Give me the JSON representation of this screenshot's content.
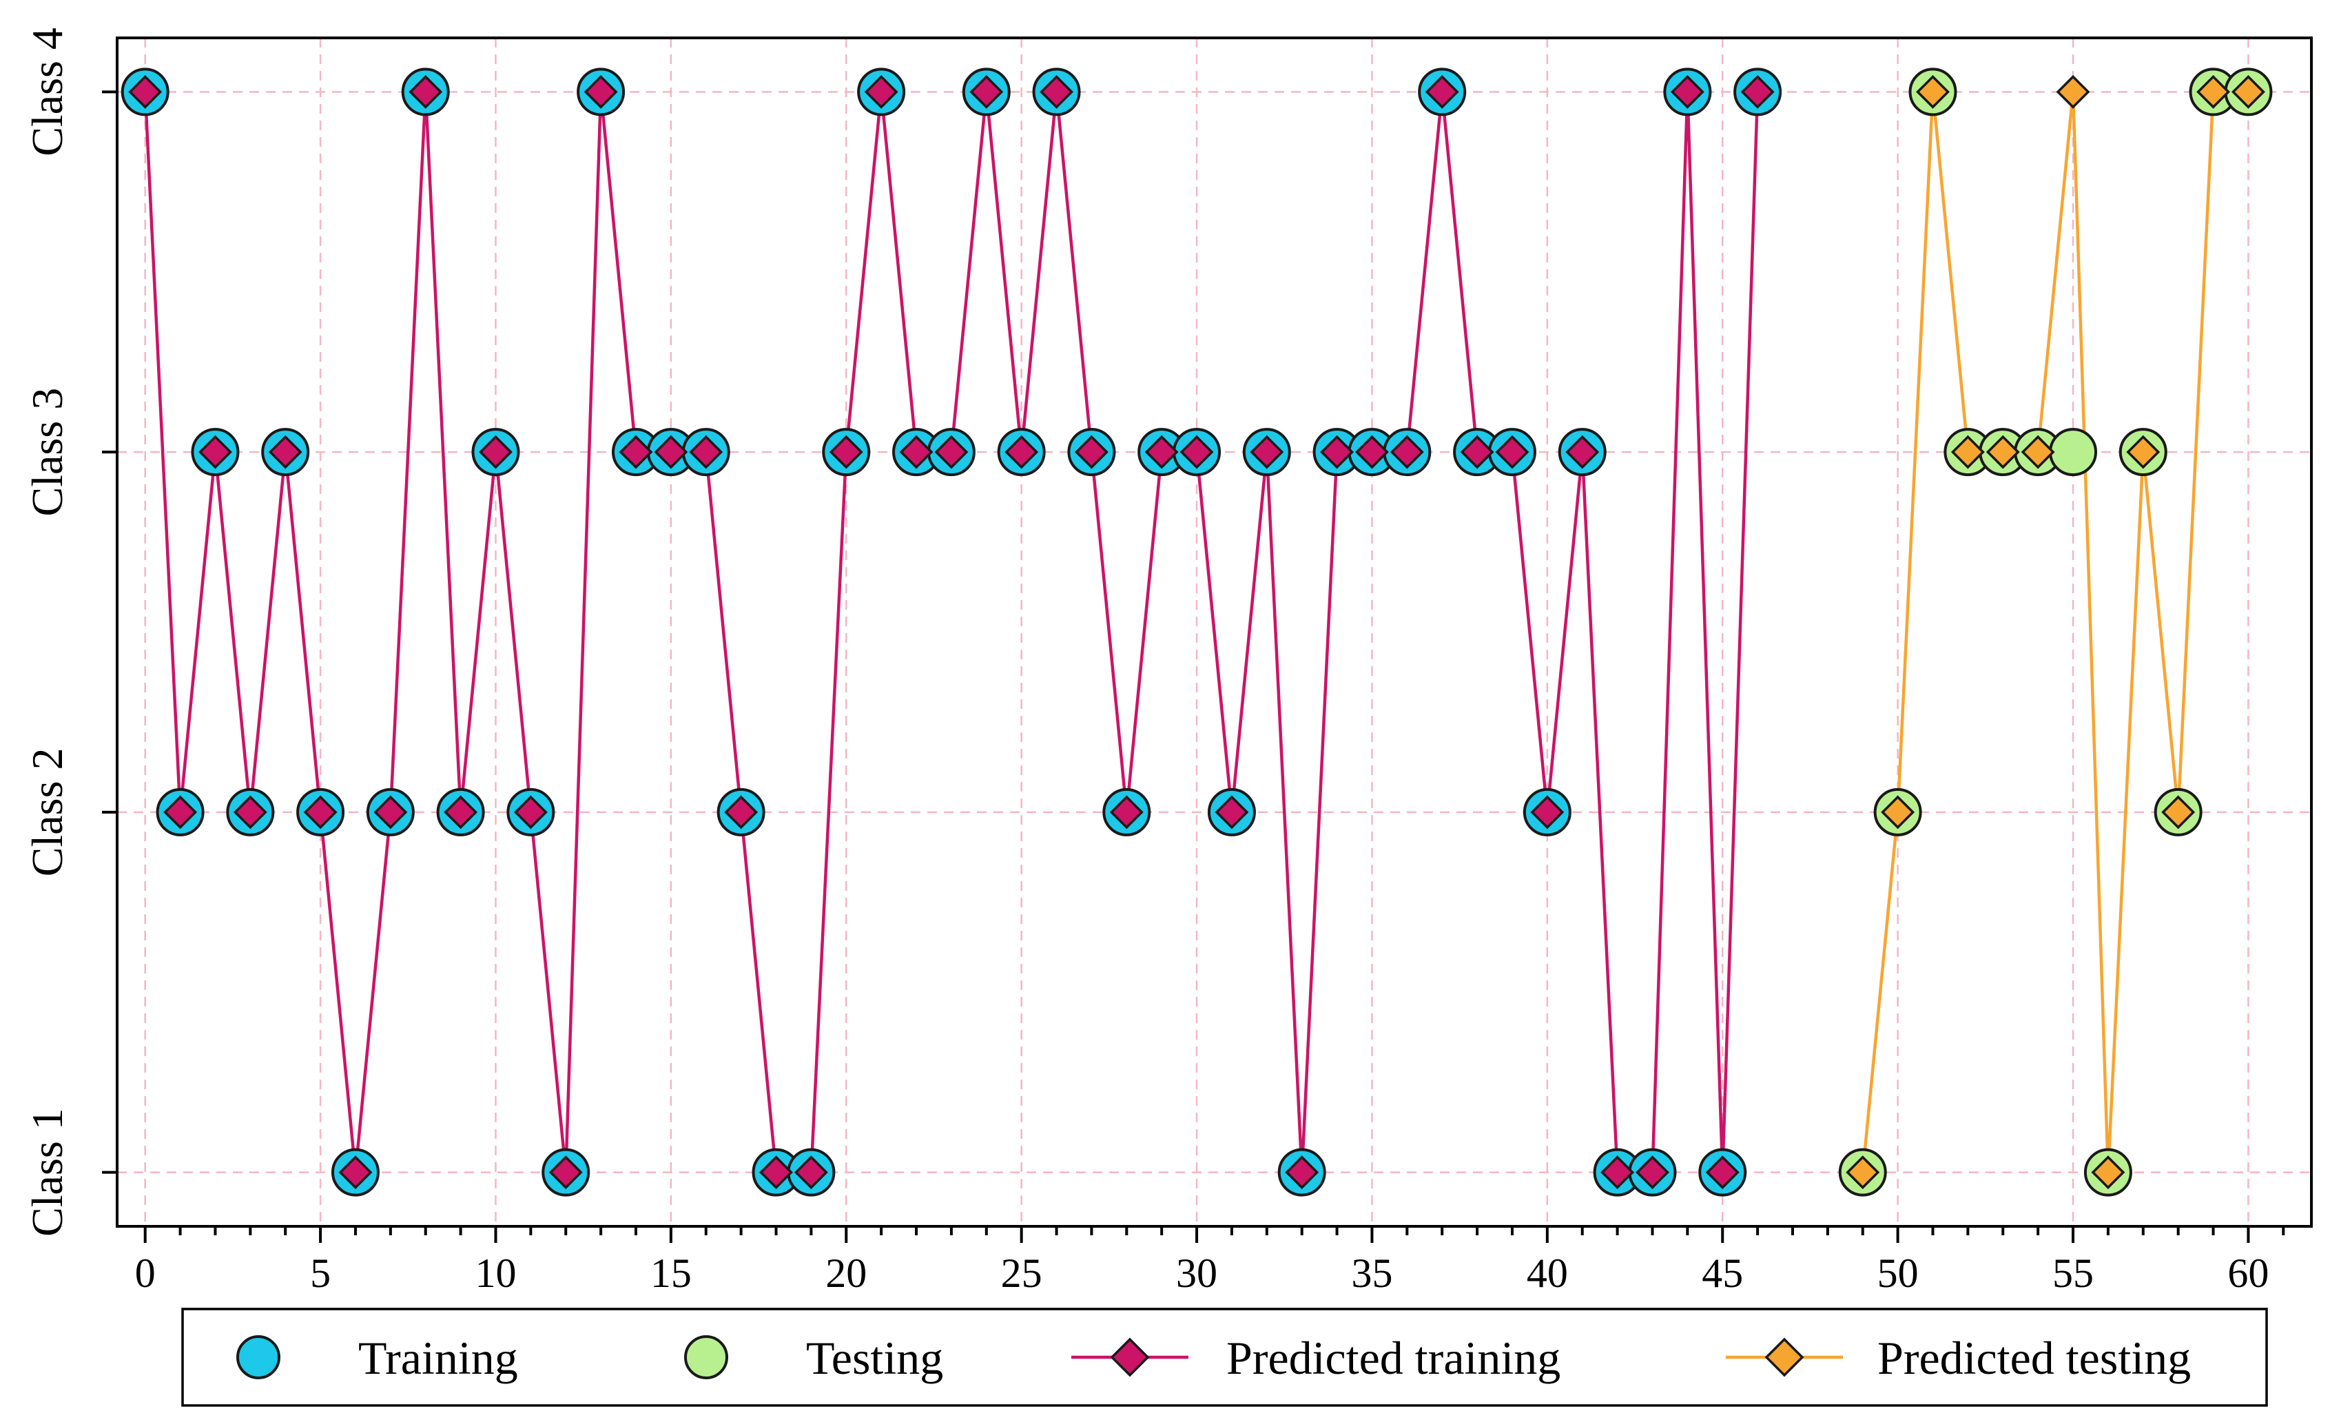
{
  "chart_data": {
    "type": "line",
    "title": "",
    "xlabel": "",
    "ylabel": "",
    "xlim": [
      -0.8,
      61.8
    ],
    "ylim": [
      0.85,
      4.15
    ],
    "x_ticks": [
      "0",
      "5",
      "10",
      "15",
      "20",
      "25",
      "30",
      "35",
      "40",
      "45",
      "50",
      "55",
      "60"
    ],
    "y_categories": [
      "Class 1",
      "Class 2",
      "Class 3",
      "Class 4"
    ],
    "grid": true,
    "legend_position": "bottom",
    "series": [
      {
        "name": "Training",
        "marker": "circle",
        "color": "#1ec8e8",
        "x": [
          0,
          1,
          2,
          3,
          4,
          5,
          6,
          7,
          8,
          9,
          10,
          11,
          12,
          13,
          14,
          15,
          16,
          17,
          18,
          19,
          20,
          21,
          22,
          23,
          24,
          25,
          26,
          27,
          28,
          29,
          30,
          31,
          32,
          33,
          34,
          35,
          36,
          37,
          38,
          39,
          40,
          41,
          42,
          43,
          44,
          45,
          46
        ],
        "y": [
          4,
          2,
          3,
          2,
          3,
          2,
          1,
          2,
          4,
          2,
          3,
          2,
          1,
          4,
          3,
          3,
          3,
          2,
          1,
          1,
          3,
          4,
          3,
          3,
          4,
          3,
          4,
          3,
          2,
          3,
          3,
          2,
          3,
          1,
          3,
          3,
          3,
          4,
          3,
          3,
          2,
          3,
          1,
          1,
          4,
          1,
          4
        ]
      },
      {
        "name": "Testing",
        "marker": "circle",
        "color": "#b8f090",
        "x": [
          49,
          50,
          51,
          52,
          53,
          54,
          55,
          56,
          57,
          58,
          59,
          60
        ],
        "y": [
          1,
          2,
          4,
          3,
          3,
          3,
          3,
          1,
          3,
          2,
          4,
          4
        ]
      },
      {
        "name": "Predicted training",
        "marker": "diamond",
        "color": "#cc1466",
        "line": true,
        "x": [
          0,
          1,
          2,
          3,
          4,
          5,
          6,
          7,
          8,
          9,
          10,
          11,
          12,
          13,
          14,
          15,
          16,
          17,
          18,
          19,
          20,
          21,
          22,
          23,
          24,
          25,
          26,
          27,
          28,
          29,
          30,
          31,
          32,
          33,
          34,
          35,
          36,
          37,
          38,
          39,
          40,
          41,
          42,
          43,
          44,
          45,
          46
        ],
        "y": [
          4,
          2,
          3,
          2,
          3,
          2,
          1,
          2,
          4,
          2,
          3,
          2,
          1,
          4,
          3,
          3,
          3,
          2,
          1,
          1,
          3,
          4,
          3,
          3,
          4,
          3,
          4,
          3,
          2,
          3,
          3,
          2,
          3,
          1,
          3,
          3,
          3,
          4,
          3,
          3,
          2,
          3,
          1,
          1,
          4,
          1,
          4
        ]
      },
      {
        "name": "Predicted testing",
        "marker": "diamond",
        "color": "#f7a531",
        "line": true,
        "x": [
          49,
          50,
          51,
          52,
          53,
          54,
          55,
          56,
          57,
          58,
          59,
          60
        ],
        "y": [
          1,
          2,
          4,
          3,
          3,
          3,
          4,
          1,
          3,
          2,
          4,
          4
        ]
      }
    ]
  },
  "colors": {
    "grid": "#f4b6c2",
    "marker_edge": "#1a1a1a"
  }
}
